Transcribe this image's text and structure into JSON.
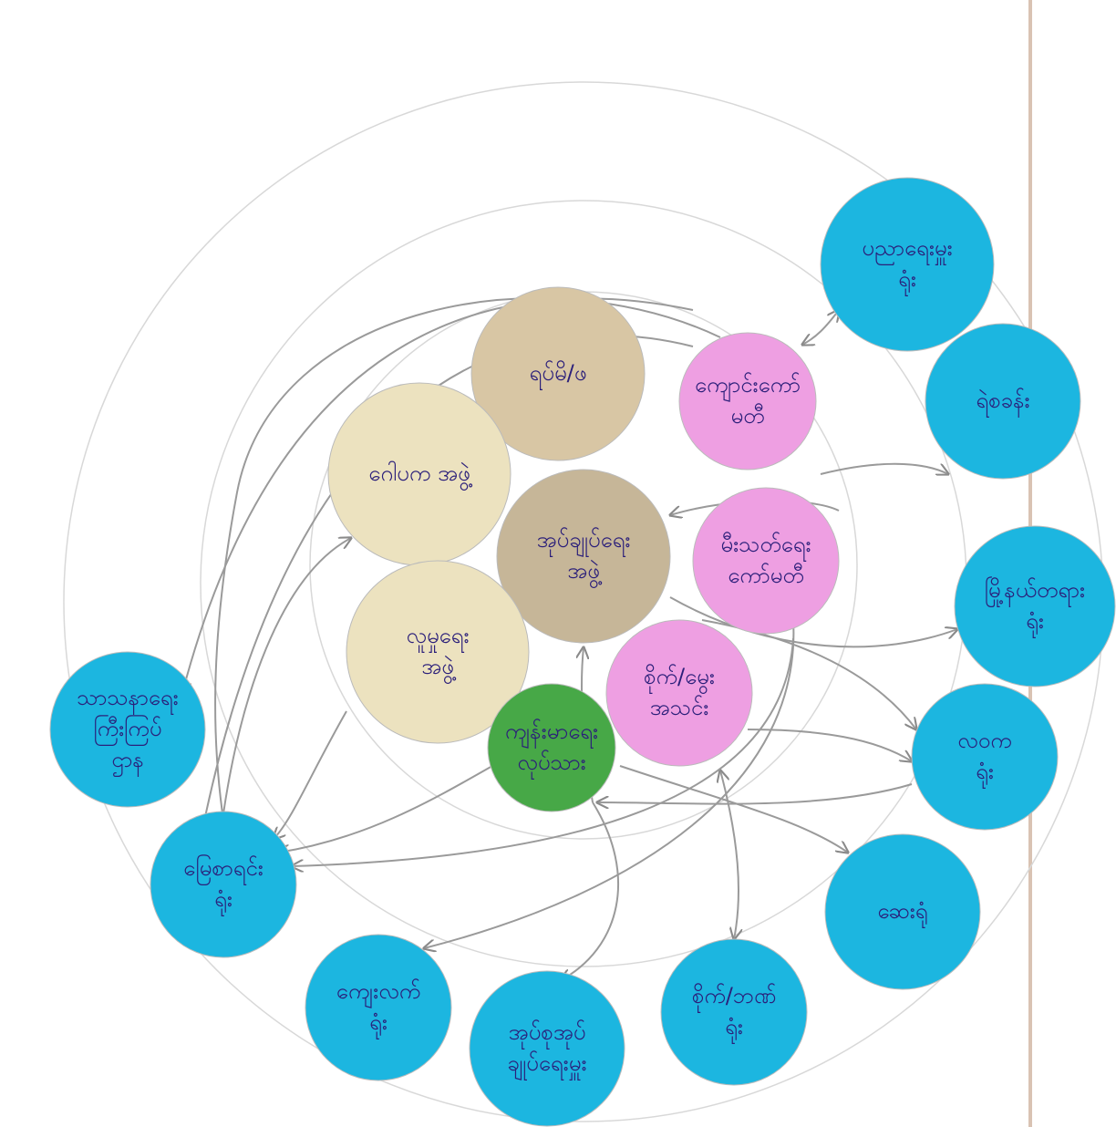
{
  "nodes": [
    {
      "lines": [
        "ရပ်မိ/ဖ"
      ]
    },
    {
      "lines": [
        "ဂေါပက အဖွဲ့"
      ]
    },
    {
      "lines": [
        "အုပ်ချုပ်ရေး",
        "အဖွဲ့"
      ]
    },
    {
      "lines": [
        "လူမှုရေး",
        "အဖွဲ့"
      ]
    },
    {
      "lines": [
        "ကျောင်းကော်",
        "မတီ"
      ]
    },
    {
      "lines": [
        "မီးသတ်ရေး",
        "ကော်မတီ"
      ]
    },
    {
      "lines": [
        "စိုက်/မွေး",
        "အသင်း"
      ]
    },
    {
      "lines": [
        "ကျန်းမာရေး",
        "လုပ်သား"
      ]
    },
    {
      "lines": [
        "ပညာရေးမှူး",
        "ရုံး"
      ]
    },
    {
      "lines": [
        "ရဲစခန်း"
      ]
    },
    {
      "lines": [
        "မြို့နယ်တရား",
        "ရုံး"
      ]
    },
    {
      "lines": [
        "လဝက",
        "ရုံး"
      ]
    },
    {
      "lines": [
        "ဆေးရုံ"
      ]
    },
    {
      "lines": [
        "စိုက်/ဘဏ်",
        "ရုံး"
      ]
    },
    {
      "lines": [
        "အုပ်စုအုပ်",
        "ချုပ်ရေးမှူး"
      ]
    },
    {
      "lines": [
        "ကျေးလက်",
        "ရုံး"
      ]
    },
    {
      "lines": [
        "မြေစာရင်း",
        "ရုံး"
      ]
    },
    {
      "lines": [
        "သာသနာရေး",
        "ကြီးကြပ်",
        "ဌာန"
      ]
    }
  ]
}
